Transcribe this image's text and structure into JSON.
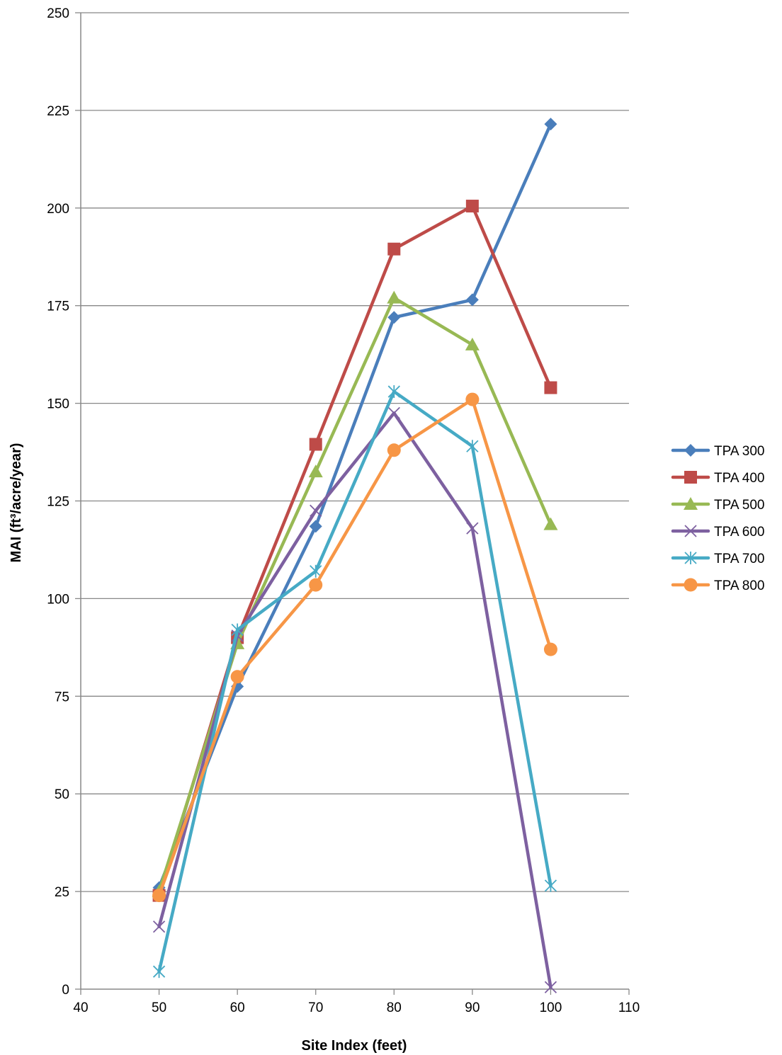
{
  "chart_data": {
    "type": "line",
    "title": "",
    "xlabel": "Site Index (feet)",
    "ylabel": "MAI (ft³/acre/year)",
    "xlim": [
      40,
      110
    ],
    "ylim": [
      0,
      250
    ],
    "xticks": [
      40,
      50,
      60,
      70,
      80,
      90,
      100,
      110
    ],
    "yticks": [
      0,
      25,
      50,
      75,
      100,
      125,
      150,
      175,
      200,
      225,
      250
    ],
    "grid": "horizontal",
    "legend_position": "right",
    "x": [
      50,
      60,
      70,
      80,
      90,
      100
    ],
    "series": [
      {
        "name": "TPA 300",
        "color": "#4a7ebb",
        "marker": "diamond",
        "values": [
          26,
          77.5,
          118.5,
          172,
          176.5,
          221.5
        ]
      },
      {
        "name": "TPA 400",
        "color": "#be4b48",
        "marker": "square",
        "values": [
          24,
          90,
          139.5,
          189.5,
          200.5,
          154
        ]
      },
      {
        "name": "TPA 500",
        "color": "#98b954",
        "marker": "triangle",
        "values": [
          25,
          88.5,
          132.5,
          177,
          165,
          119
        ]
      },
      {
        "name": "TPA 600",
        "color": "#7d60a0",
        "marker": "x",
        "values": [
          16,
          90.5,
          122.5,
          147.5,
          118,
          0.5
        ]
      },
      {
        "name": "TPA 700",
        "color": "#46aac5",
        "marker": "star",
        "values": [
          4.5,
          92,
          107,
          153,
          139,
          26.5
        ]
      },
      {
        "name": "TPA 800",
        "color": "#f79646",
        "marker": "circle",
        "values": [
          24,
          80,
          103.5,
          138,
          151,
          87
        ]
      }
    ]
  }
}
